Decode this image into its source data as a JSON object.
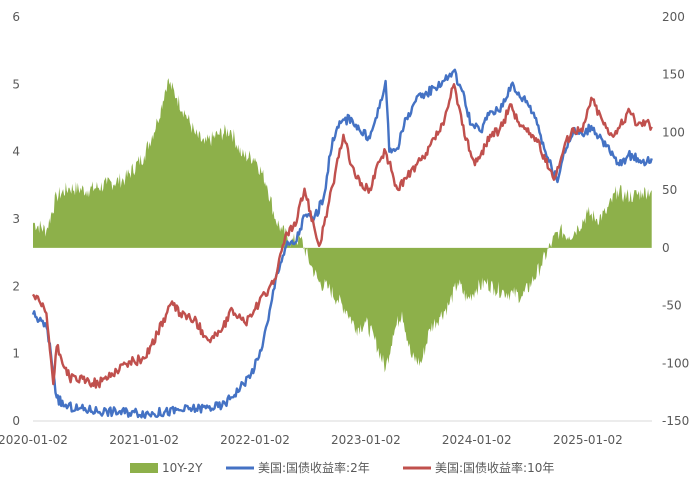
{
  "chart_data": {
    "type": "line",
    "title": "",
    "grid": false,
    "legend_position": "bottom",
    "x_axis": {
      "type": "date",
      "range": [
        "2020-01-02",
        "2025-08-01"
      ],
      "ticks": [
        "2020-01-02",
        "2021-01-02",
        "2022-01-02",
        "2023-01-02",
        "2024-01-02",
        "2025-01-02"
      ]
    },
    "y_left": {
      "range": [
        0,
        6
      ],
      "ticks": [
        "0",
        "1",
        "2",
        "3",
        "4",
        "5",
        "6"
      ]
    },
    "y_right": {
      "range": [
        -150,
        200
      ],
      "ticks": [
        "-150",
        "-100",
        "-50",
        "0",
        "50",
        "100",
        "150",
        "200"
      ]
    },
    "series": [
      {
        "name": "10Y-2Y",
        "kind": "area",
        "axis": "right",
        "color": "#8db04a",
        "x": [
          "2020-01-02",
          "2020-02-15",
          "2020-03-20",
          "2020-05-01",
          "2020-07-01",
          "2020-09-01",
          "2020-11-01",
          "2021-01-02",
          "2021-02-15",
          "2021-03-20",
          "2021-04-20",
          "2021-05-20",
          "2021-06-20",
          "2021-07-20",
          "2021-09-01",
          "2021-10-15",
          "2021-11-20",
          "2022-01-02",
          "2022-02-10",
          "2022-03-10",
          "2022-04-01",
          "2022-05-01",
          "2022-06-01",
          "2022-07-05",
          "2022-08-01",
          "2022-09-01",
          "2022-10-01",
          "2022-11-01",
          "2022-12-01",
          "2023-01-02",
          "2023-02-01",
          "2023-03-08",
          "2023-04-01",
          "2023-05-01",
          "2023-06-01",
          "2023-07-03",
          "2023-08-01",
          "2023-09-01",
          "2023-10-01",
          "2023-11-01",
          "2023-12-01",
          "2024-01-02",
          "2024-02-01",
          "2024-03-01",
          "2024-04-01",
          "2024-05-01",
          "2024-06-01",
          "2024-07-01",
          "2024-08-01",
          "2024-09-06",
          "2024-10-01",
          "2024-11-01",
          "2024-12-01",
          "2025-01-02",
          "2025-02-01",
          "2025-03-01",
          "2025-04-10",
          "2025-05-01",
          "2025-06-01",
          "2025-07-01",
          "2025-07-31"
        ],
        "values": [
          22,
          15,
          45,
          52,
          50,
          55,
          60,
          80,
          110,
          145,
          130,
          115,
          98,
          90,
          98,
          102,
          80,
          78,
          55,
          25,
          15,
          5,
          8,
          -15,
          -30,
          -35,
          -45,
          -55,
          -70,
          -65,
          -80,
          -105,
          -75,
          -55,
          -95,
          -100,
          -70,
          -60,
          -50,
          -30,
          -45,
          -35,
          -30,
          -35,
          -38,
          -40,
          -42,
          -30,
          -15,
          5,
          15,
          10,
          18,
          30,
          25,
          30,
          50,
          45,
          45,
          48,
          50
        ]
      },
      {
        "name": "美国:国债收益率:2年",
        "kind": "line",
        "axis": "left",
        "color": "#4472c4",
        "x": [
          "2020-01-02",
          "2020-02-15",
          "2020-03-01",
          "2020-03-20",
          "2020-04-15",
          "2020-06-01",
          "2020-09-01",
          "2020-12-01",
          "2021-02-01",
          "2021-05-01",
          "2021-08-01",
          "2021-09-15",
          "2021-10-15",
          "2021-11-15",
          "2021-12-20",
          "2022-01-15",
          "2022-02-15",
          "2022-03-15",
          "2022-04-15",
          "2022-05-15",
          "2022-06-15",
          "2022-07-15",
          "2022-08-15",
          "2022-09-15",
          "2022-10-15",
          "2022-11-15",
          "2022-12-15",
          "2023-01-15",
          "2023-02-15",
          "2023-03-08",
          "2023-03-20",
          "2023-04-15",
          "2023-05-15",
          "2023-06-15",
          "2023-07-15",
          "2023-08-15",
          "2023-09-15",
          "2023-10-18",
          "2023-11-15",
          "2023-12-15",
          "2024-01-15",
          "2024-02-15",
          "2024-03-15",
          "2024-04-25",
          "2024-05-15",
          "2024-06-15",
          "2024-07-15",
          "2024-08-15",
          "2024-09-24",
          "2024-10-15",
          "2024-11-15",
          "2024-12-15",
          "2025-01-13",
          "2025-02-15",
          "2025-03-15",
          "2025-04-15",
          "2025-05-15",
          "2025-06-15",
          "2025-07-15",
          "2025-07-31"
        ],
        "values": [
          1.58,
          1.4,
          1.0,
          0.35,
          0.22,
          0.18,
          0.14,
          0.13,
          0.11,
          0.16,
          0.2,
          0.22,
          0.35,
          0.5,
          0.7,
          0.95,
          1.5,
          2.2,
          2.6,
          2.65,
          3.05,
          3.0,
          3.3,
          4.2,
          4.45,
          4.5,
          4.3,
          4.2,
          4.65,
          5.05,
          4.0,
          4.05,
          4.5,
          4.75,
          4.85,
          4.95,
          5.05,
          5.2,
          4.9,
          4.4,
          4.3,
          4.6,
          4.6,
          5.0,
          4.85,
          4.75,
          4.5,
          4.0,
          3.55,
          4.0,
          4.3,
          4.25,
          4.38,
          4.2,
          4.0,
          3.8,
          3.95,
          3.9,
          3.85,
          3.9
        ]
      },
      {
        "name": "美国:国债收益率:10年",
        "kind": "line",
        "axis": "left",
        "color": "#c0504d",
        "x": [
          "2020-01-02",
          "2020-02-15",
          "2020-03-09",
          "2020-03-20",
          "2020-05-01",
          "2020-08-04",
          "2020-11-01",
          "2021-01-02",
          "2021-02-15",
          "2021-03-31",
          "2021-05-01",
          "2021-06-15",
          "2021-08-04",
          "2021-09-15",
          "2021-10-20",
          "2021-12-01",
          "2022-01-15",
          "2022-02-15",
          "2022-03-15",
          "2022-04-15",
          "2022-05-15",
          "2022-06-14",
          "2022-07-15",
          "2022-08-01",
          "2022-09-15",
          "2022-10-20",
          "2022-11-15",
          "2022-12-15",
          "2023-01-15",
          "2023-02-15",
          "2023-03-08",
          "2023-04-15",
          "2023-05-15",
          "2023-06-15",
          "2023-07-15",
          "2023-08-15",
          "2023-09-15",
          "2023-10-19",
          "2023-11-15",
          "2023-12-27",
          "2024-01-15",
          "2024-02-15",
          "2024-03-15",
          "2024-04-25",
          "2024-05-15",
          "2024-06-15",
          "2024-07-15",
          "2024-08-15",
          "2024-09-16",
          "2024-10-15",
          "2024-11-15",
          "2024-12-15",
          "2025-01-13",
          "2025-02-15",
          "2025-03-15",
          "2025-04-15",
          "2025-05-20",
          "2025-06-15",
          "2025-07-15",
          "2025-07-31"
        ],
        "values": [
          1.88,
          1.6,
          0.55,
          1.1,
          0.65,
          0.55,
          0.85,
          0.93,
          1.3,
          1.74,
          1.6,
          1.5,
          1.2,
          1.35,
          1.65,
          1.45,
          1.75,
          1.95,
          2.2,
          2.8,
          2.9,
          3.45,
          2.9,
          2.6,
          3.5,
          4.25,
          3.8,
          3.5,
          3.45,
          3.85,
          4.0,
          3.45,
          3.6,
          3.8,
          3.9,
          4.2,
          4.4,
          5.0,
          4.4,
          3.8,
          3.95,
          4.25,
          4.3,
          4.7,
          4.45,
          4.3,
          4.2,
          3.85,
          3.62,
          4.05,
          4.35,
          4.3,
          4.8,
          4.5,
          4.25,
          4.35,
          4.6,
          4.4,
          4.45,
          4.37
        ]
      }
    ]
  }
}
